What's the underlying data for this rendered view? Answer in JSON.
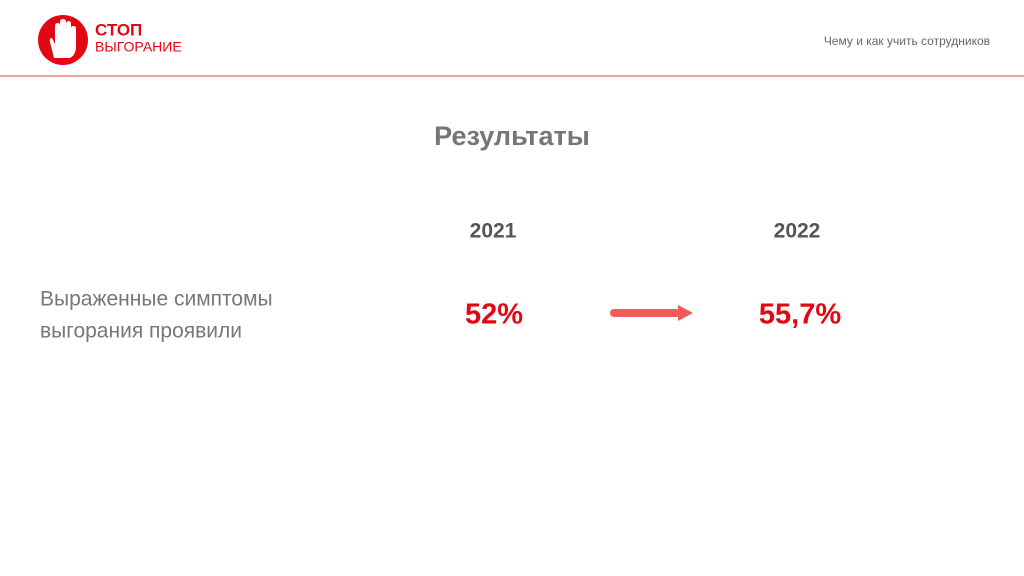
{
  "header": {
    "logo_line1": "СТОП",
    "logo_line2": "ВЫГОРАНИЕ",
    "subtitle": "Чему и как учить сотрудников"
  },
  "title": "Результаты",
  "table": {
    "columns": [
      "2021",
      "2022"
    ],
    "rows": [
      {
        "label_lines": [
          "Выраженные симптомы",
          "выгорания проявили"
        ],
        "values": [
          "52%",
          "55,7%"
        ]
      }
    ]
  }
}
